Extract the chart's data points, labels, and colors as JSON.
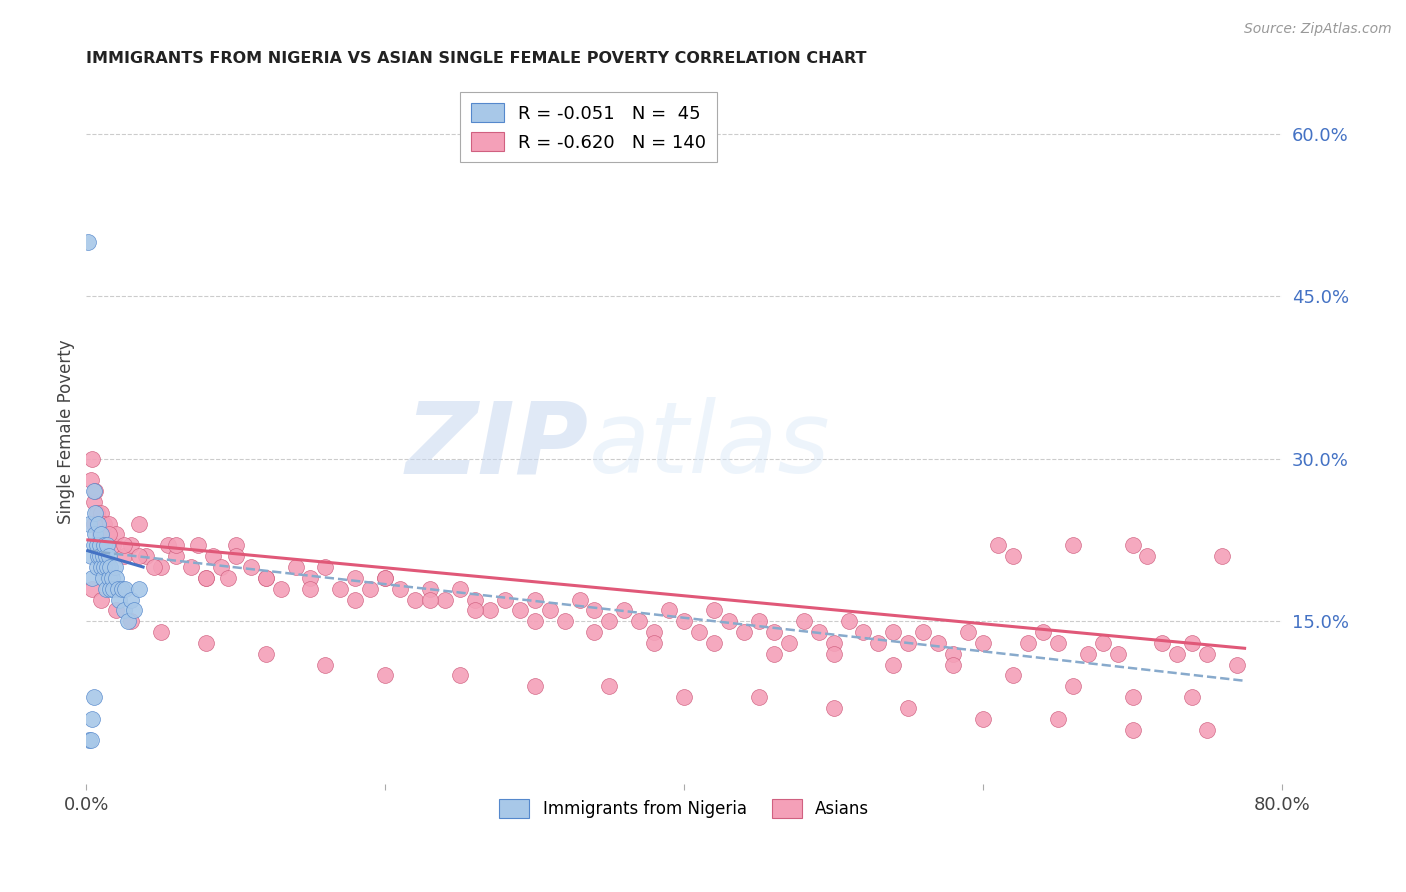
{
  "title": "IMMIGRANTS FROM NIGERIA VS ASIAN SINGLE FEMALE POVERTY CORRELATION CHART",
  "source": "Source: ZipAtlas.com",
  "ylabel": "Single Female Poverty",
  "xlim": [
    0.0,
    0.8
  ],
  "ylim": [
    0.0,
    0.65
  ],
  "yticks": [
    0.15,
    0.3,
    0.45,
    0.6
  ],
  "ytick_labels": [
    "15.0%",
    "30.0%",
    "45.0%",
    "60.0%"
  ],
  "xticks": [
    0.0,
    0.2,
    0.4,
    0.6,
    0.8
  ],
  "xtick_labels": [
    "0.0%",
    "",
    "",
    "",
    "80.0%"
  ],
  "legend_label_blue": "R = -0.051   N =  45",
  "legend_label_pink": "R = -0.620   N = 140",
  "bottom_legend_blue": "Immigrants from Nigeria",
  "bottom_legend_pink": "Asians",
  "watermark_zip": "ZIP",
  "watermark_atlas": "atlas",
  "background_color": "#ffffff",
  "grid_color": "#cccccc",
  "title_color": "#222222",
  "right_tick_color": "#4472c4",
  "nigeria_color": "#a8c8e8",
  "nigeria_edge": "#5588cc",
  "asian_color": "#f4a0b8",
  "asian_edge": "#d06080",
  "nigeria_trend_color": "#4472c4",
  "asian_trend_color": "#e05878",
  "dashed_color": "#88aacc",
  "nigeria_points_x": [
    0.002,
    0.003,
    0.004,
    0.005,
    0.005,
    0.006,
    0.006,
    0.007,
    0.007,
    0.008,
    0.008,
    0.009,
    0.009,
    0.01,
    0.01,
    0.011,
    0.011,
    0.012,
    0.012,
    0.013,
    0.013,
    0.014,
    0.014,
    0.015,
    0.015,
    0.016,
    0.016,
    0.017,
    0.018,
    0.019,
    0.02,
    0.021,
    0.022,
    0.024,
    0.025,
    0.026,
    0.028,
    0.03,
    0.032,
    0.035,
    0.001,
    0.002,
    0.003,
    0.004,
    0.005
  ],
  "nigeria_points_y": [
    0.24,
    0.21,
    0.19,
    0.22,
    0.27,
    0.23,
    0.25,
    0.2,
    0.22,
    0.21,
    0.24,
    0.22,
    0.21,
    0.2,
    0.23,
    0.21,
    0.19,
    0.22,
    0.2,
    0.21,
    0.18,
    0.2,
    0.22,
    0.19,
    0.21,
    0.18,
    0.2,
    0.19,
    0.18,
    0.2,
    0.19,
    0.18,
    0.17,
    0.18,
    0.16,
    0.18,
    0.15,
    0.17,
    0.16,
    0.18,
    0.5,
    0.04,
    0.04,
    0.06,
    0.08
  ],
  "asian_points_x": [
    0.003,
    0.004,
    0.005,
    0.006,
    0.007,
    0.008,
    0.009,
    0.01,
    0.011,
    0.012,
    0.015,
    0.018,
    0.02,
    0.025,
    0.03,
    0.035,
    0.04,
    0.05,
    0.055,
    0.06,
    0.07,
    0.075,
    0.08,
    0.085,
    0.09,
    0.095,
    0.1,
    0.11,
    0.12,
    0.13,
    0.14,
    0.15,
    0.16,
    0.17,
    0.18,
    0.19,
    0.2,
    0.21,
    0.22,
    0.23,
    0.24,
    0.25,
    0.26,
    0.27,
    0.28,
    0.29,
    0.3,
    0.31,
    0.32,
    0.33,
    0.34,
    0.35,
    0.36,
    0.37,
    0.38,
    0.39,
    0.4,
    0.41,
    0.42,
    0.43,
    0.44,
    0.45,
    0.46,
    0.47,
    0.48,
    0.49,
    0.5,
    0.51,
    0.52,
    0.53,
    0.54,
    0.55,
    0.56,
    0.57,
    0.58,
    0.59,
    0.6,
    0.61,
    0.62,
    0.63,
    0.64,
    0.65,
    0.66,
    0.67,
    0.68,
    0.69,
    0.7,
    0.71,
    0.72,
    0.73,
    0.74,
    0.75,
    0.76,
    0.77,
    0.005,
    0.015,
    0.025,
    0.035,
    0.045,
    0.06,
    0.08,
    0.1,
    0.12,
    0.15,
    0.18,
    0.2,
    0.23,
    0.26,
    0.3,
    0.34,
    0.38,
    0.42,
    0.46,
    0.5,
    0.54,
    0.58,
    0.62,
    0.66,
    0.7,
    0.74,
    0.004,
    0.01,
    0.02,
    0.03,
    0.05,
    0.08,
    0.12,
    0.16,
    0.2,
    0.25,
    0.3,
    0.35,
    0.4,
    0.45,
    0.5,
    0.55,
    0.6,
    0.65,
    0.7,
    0.75
  ],
  "asian_points_y": [
    0.28,
    0.3,
    0.26,
    0.27,
    0.25,
    0.24,
    0.23,
    0.25,
    0.22,
    0.24,
    0.24,
    0.22,
    0.23,
    0.21,
    0.22,
    0.24,
    0.21,
    0.2,
    0.22,
    0.21,
    0.2,
    0.22,
    0.19,
    0.21,
    0.2,
    0.19,
    0.22,
    0.2,
    0.19,
    0.18,
    0.2,
    0.19,
    0.2,
    0.18,
    0.19,
    0.18,
    0.19,
    0.18,
    0.17,
    0.18,
    0.17,
    0.18,
    0.17,
    0.16,
    0.17,
    0.16,
    0.17,
    0.16,
    0.15,
    0.17,
    0.16,
    0.15,
    0.16,
    0.15,
    0.14,
    0.16,
    0.15,
    0.14,
    0.16,
    0.15,
    0.14,
    0.15,
    0.14,
    0.13,
    0.15,
    0.14,
    0.13,
    0.15,
    0.14,
    0.13,
    0.14,
    0.13,
    0.14,
    0.13,
    0.12,
    0.14,
    0.13,
    0.22,
    0.21,
    0.13,
    0.14,
    0.13,
    0.22,
    0.12,
    0.13,
    0.12,
    0.22,
    0.21,
    0.13,
    0.12,
    0.13,
    0.12,
    0.21,
    0.11,
    0.24,
    0.23,
    0.22,
    0.21,
    0.2,
    0.22,
    0.19,
    0.21,
    0.19,
    0.18,
    0.17,
    0.19,
    0.17,
    0.16,
    0.15,
    0.14,
    0.13,
    0.13,
    0.12,
    0.12,
    0.11,
    0.11,
    0.1,
    0.09,
    0.08,
    0.08,
    0.18,
    0.17,
    0.16,
    0.15,
    0.14,
    0.13,
    0.12,
    0.11,
    0.1,
    0.1,
    0.09,
    0.09,
    0.08,
    0.08,
    0.07,
    0.07,
    0.06,
    0.06,
    0.05,
    0.05
  ],
  "nigeria_trend_x": [
    0.001,
    0.038
  ],
  "nigeria_trend_y": [
    0.215,
    0.2
  ],
  "asian_trend_x": [
    0.001,
    0.775
  ],
  "asian_trend_y": [
    0.225,
    0.125
  ],
  "dash_trend_x": [
    0.001,
    0.775
  ],
  "dash_trend_y": [
    0.215,
    0.095
  ]
}
